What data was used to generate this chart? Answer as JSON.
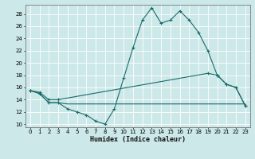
{
  "xlabel": "Humidex (Indice chaleur)",
  "bg_color": "#cce8e8",
  "line_color": "#1a6b6b",
  "grid_color": "#ffffff",
  "xlim": [
    -0.5,
    23.5
  ],
  "ylim": [
    9.5,
    29.5
  ],
  "yticks": [
    10,
    12,
    14,
    16,
    18,
    20,
    22,
    24,
    26,
    28
  ],
  "xticks": [
    0,
    1,
    2,
    3,
    4,
    5,
    6,
    7,
    8,
    9,
    10,
    11,
    12,
    13,
    14,
    15,
    16,
    17,
    18,
    19,
    20,
    21,
    22,
    23
  ],
  "curve1_x": [
    0,
    1,
    2,
    3,
    4,
    5,
    6,
    7,
    8,
    9,
    10,
    11,
    12,
    13,
    14,
    15,
    16,
    17,
    18,
    19,
    20,
    21,
    22,
    23
  ],
  "curve1_y": [
    15.5,
    15.0,
    13.5,
    13.5,
    12.5,
    12.0,
    11.5,
    10.5,
    10.0,
    12.5,
    17.5,
    22.5,
    27.0,
    29.0,
    26.5,
    27.0,
    28.5,
    27.0,
    25.0,
    22.0,
    18.0,
    16.5,
    16.0,
    13.0
  ],
  "curve2_x": [
    0,
    1,
    2,
    3,
    19,
    20,
    21,
    22,
    23
  ],
  "curve2_y": [
    15.5,
    15.2,
    14.0,
    14.0,
    18.3,
    18.0,
    16.5,
    16.0,
    13.0
  ],
  "curve3_x": [
    0,
    1,
    2,
    3,
    4,
    5,
    6,
    7,
    8,
    9,
    10,
    11,
    12,
    13,
    14,
    15,
    16,
    17,
    18,
    19,
    20,
    21,
    22,
    23
  ],
  "curve3_y": [
    15.5,
    15.0,
    13.5,
    13.5,
    13.3,
    13.3,
    13.3,
    13.3,
    13.3,
    13.3,
    13.3,
    13.3,
    13.3,
    13.3,
    13.3,
    13.3,
    13.3,
    13.3,
    13.3,
    13.3,
    13.3,
    13.3,
    13.3,
    13.3
  ]
}
